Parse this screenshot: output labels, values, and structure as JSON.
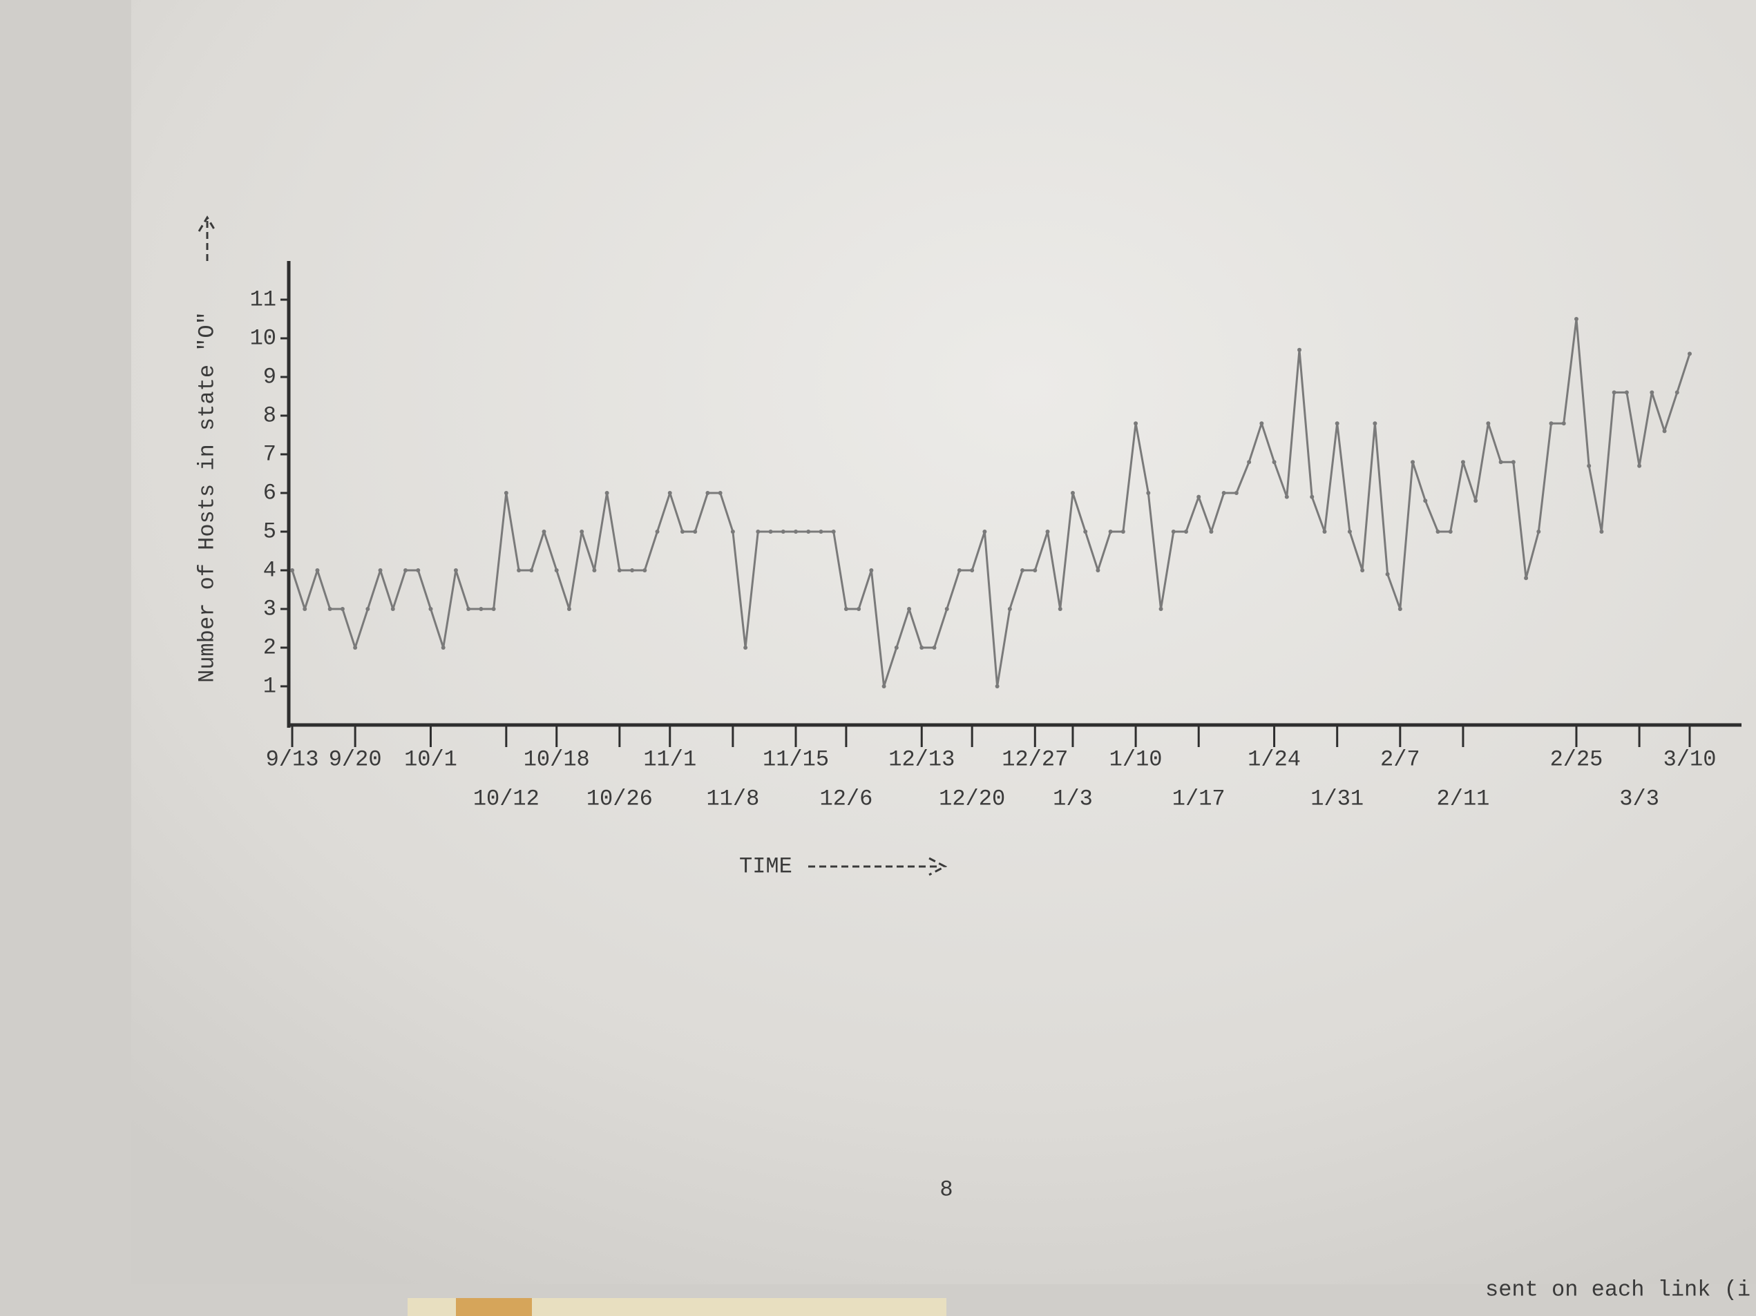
{
  "chart_data": {
    "type": "line",
    "ylabel": "Number of Hosts in state \"O\"",
    "xlabel": "TIME",
    "categories": [
      "9/13",
      null,
      null,
      null,
      null,
      "9/20",
      null,
      null,
      null,
      null,
      null,
      "10/1",
      null,
      null,
      null,
      null,
      null,
      "10/12",
      null,
      null,
      null,
      "10/18",
      null,
      null,
      null,
      null,
      "10/26",
      null,
      null,
      null,
      "11/1",
      null,
      null,
      null,
      null,
      "11/8",
      null,
      null,
      null,
      null,
      "11/15",
      null,
      null,
      null,
      "12/6",
      null,
      null,
      null,
      null,
      null,
      "12/13",
      null,
      null,
      null,
      "12/20",
      null,
      null,
      null,
      null,
      "12/27",
      null,
      null,
      "1/3",
      null,
      null,
      null,
      null,
      "1/10",
      null,
      null,
      null,
      null,
      "1/17",
      null,
      null,
      null,
      null,
      null,
      "1/24",
      null,
      null,
      null,
      null,
      "1/31",
      null,
      null,
      null,
      null,
      "2/7",
      null,
      null,
      null,
      null,
      "2/11",
      null,
      null,
      null,
      null,
      null,
      null,
      null,
      null,
      "2/25",
      null,
      null,
      null,
      null,
      "3/3",
      null,
      null,
      null,
      "3/10"
    ],
    "values": [
      4,
      3,
      4,
      3,
      3,
      2,
      3,
      4,
      3,
      4,
      4,
      3,
      2,
      4,
      3,
      3,
      3,
      6,
      4,
      4,
      5,
      4,
      3,
      5,
      4,
      6,
      4,
      4,
      4,
      5,
      6,
      5,
      5,
      6,
      6,
      5,
      2,
      5,
      5,
      5,
      5,
      5,
      5,
      5,
      3,
      3,
      4,
      1,
      2,
      3,
      2,
      2,
      3,
      4,
      4,
      5,
      1,
      3,
      4,
      4,
      5,
      3,
      6,
      5,
      4,
      5,
      5,
      7.8,
      6,
      3,
      5,
      5,
      5.9,
      5,
      6,
      6,
      6.8,
      7.8,
      6.8,
      5.9,
      9.7,
      5.9,
      5,
      7.8,
      5,
      4,
      7.8,
      3.9,
      3,
      6.8,
      5.8,
      5,
      5,
      6.8,
      5.8,
      7.8,
      6.8,
      6.8,
      3.8,
      5,
      7.8,
      7.8,
      10.5,
      6.7,
      5,
      8.6,
      8.6,
      6.7,
      8.6,
      7.6,
      8.6,
      9.6
    ],
    "color": "#7a7a7a",
    "ylim": [
      0,
      12
    ],
    "yticks": [
      1,
      2,
      3,
      4,
      5,
      6,
      7,
      8,
      9,
      10,
      11
    ],
    "grid": false
  },
  "page_number": "8",
  "margin_text": "sent on each link (i"
}
